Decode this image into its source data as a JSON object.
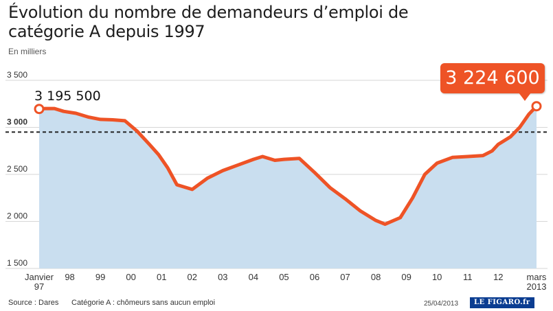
{
  "title": "Évolution du nombre de demandeurs d’emploi de catégorie A depuis 1997",
  "unit_label": "En milliers",
  "start_value_label": "3 195 500",
  "end_value_label": "3 224 600",
  "footer": {
    "source": "Source : Dares",
    "note": "Catégorie A : chômeurs sans aucun emploi",
    "date": "25/04/2013",
    "logo_text": "LE FIGARO.fr"
  },
  "colors": {
    "line": "#ee5326",
    "area": "#c9deef",
    "grid": "#d6d6d6",
    "reference_line": "#222222",
    "badge": "#ee5326"
  },
  "chart_data": {
    "type": "area",
    "title": "Évolution du nombre de demandeurs d’emploi de catégorie A depuis 1997",
    "ylabel": "En milliers",
    "ylim": [
      1500,
      3500
    ],
    "yticks": [
      1500,
      2000,
      2500,
      3000,
      3500
    ],
    "ytick_labels": [
      "1 500",
      "2 000",
      "2 500",
      "3 000",
      "3 500"
    ],
    "xlim": [
      1997.0,
      2013.25
    ],
    "xticks": [
      1997,
      1998,
      1999,
      2000,
      2001,
      2002,
      2003,
      2004,
      2005,
      2006,
      2007,
      2008,
      2009,
      2010,
      2011,
      2012,
      2013.25
    ],
    "xtick_labels": [
      [
        "Janvier",
        "97"
      ],
      [
        "98"
      ],
      [
        "99"
      ],
      [
        "00"
      ],
      [
        "01"
      ],
      [
        "02"
      ],
      [
        "03"
      ],
      [
        "04"
      ],
      [
        "05"
      ],
      [
        "06"
      ],
      [
        "07"
      ],
      [
        "08"
      ],
      [
        "09"
      ],
      [
        "10"
      ],
      [
        "11"
      ],
      [
        "12"
      ],
      [
        "mars",
        "2013"
      ]
    ],
    "reference_line": 2950,
    "grid": true,
    "series": [
      {
        "x": [
          1997.0,
          1997.2,
          1997.5,
          1997.8,
          1998.2,
          1998.6,
          1999.0,
          1999.4,
          1999.8,
          2000.2,
          2000.6,
          2000.9,
          2001.2,
          2001.5,
          2002.0,
          2002.5,
          2003.0,
          2003.5,
          2004.0,
          2004.3,
          2004.7,
          2005.0,
          2005.5,
          2006.0,
          2006.5,
          2007.0,
          2007.5,
          2008.0,
          2008.3,
          2008.8,
          2009.2,
          2009.6,
          2010.0,
          2010.5,
          2011.0,
          2011.5,
          2011.8,
          2012.0,
          2012.4,
          2012.7,
          2013.0,
          2013.25
        ],
        "y": [
          3195.5,
          3200,
          3200,
          3170,
          3150,
          3110,
          3085,
          3080,
          3070,
          2960,
          2820,
          2710,
          2570,
          2390,
          2340,
          2460,
          2540,
          2600,
          2660,
          2690,
          2650,
          2660,
          2670,
          2520,
          2360,
          2240,
          2110,
          2010,
          1970,
          2040,
          2250,
          2500,
          2620,
          2680,
          2690,
          2700,
          2750,
          2820,
          2900,
          3000,
          3140,
          3224.6
        ]
      }
    ]
  }
}
